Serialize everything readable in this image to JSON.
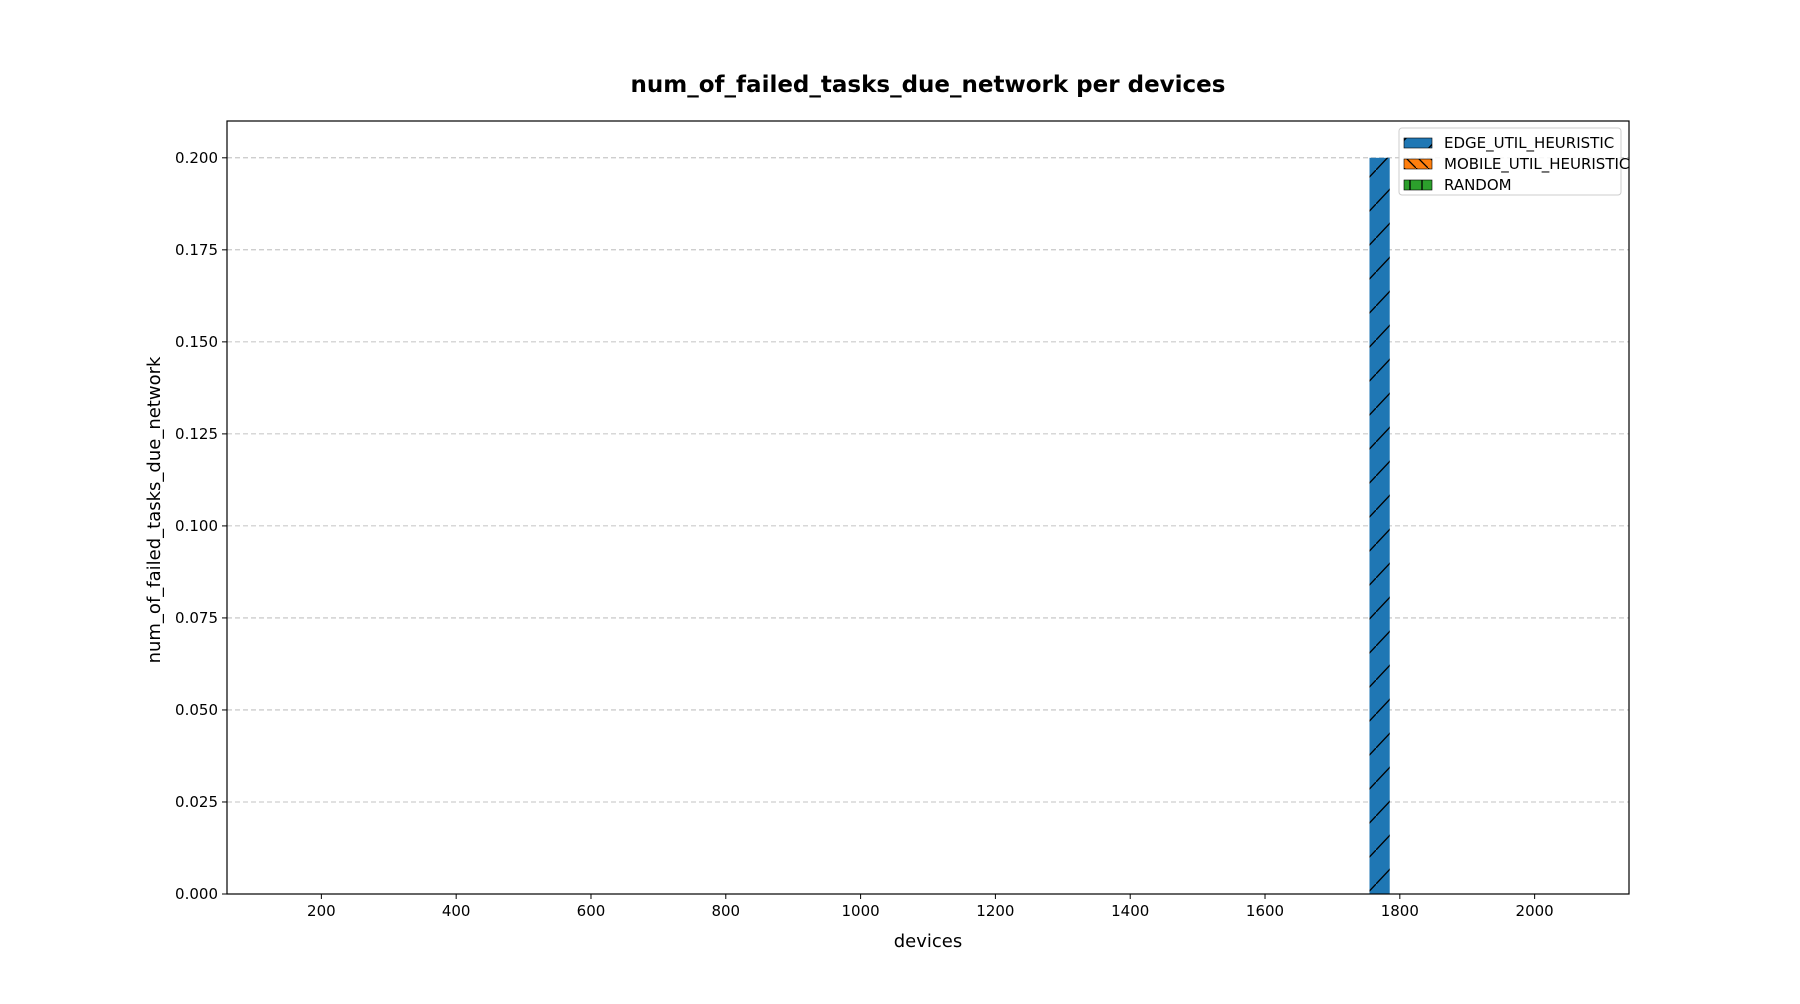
{
  "chart_data": {
    "type": "bar",
    "title": "num_of_failed_tasks_due_network per devices",
    "xlabel": "devices",
    "ylabel": "num_of_failed_tasks_due_network",
    "xlim": [
      60,
      2140
    ],
    "ylim": [
      0,
      0.21
    ],
    "x_ticks": [
      200,
      400,
      600,
      800,
      1000,
      1200,
      1400,
      1600,
      1800,
      2000
    ],
    "x_tick_labels": [
      "200",
      "400",
      "600",
      "800",
      "1000",
      "1200",
      "1400",
      "1600",
      "1800",
      "2000"
    ],
    "y_ticks": [
      0,
      0.025,
      0.05,
      0.075,
      0.1,
      0.125,
      0.15,
      0.175,
      0.2
    ],
    "y_tick_labels": [
      "0.000",
      "0.025",
      "0.050",
      "0.075",
      "0.100",
      "0.125",
      "0.150",
      "0.175",
      "0.200"
    ],
    "grid": "horizontal, dashed",
    "legend_position": "top-right",
    "bar_width": 30,
    "series": [
      {
        "name": "EDGE_UTIL_HEURISTIC",
        "color": "#1f77b4",
        "hatch": "diagonal",
        "x": [
          1770
        ],
        "values": [
          0.2
        ]
      },
      {
        "name": "MOBILE_UTIL_HEURISTIC",
        "color": "#ff7f0e",
        "hatch": "backslash",
        "x": [],
        "values": []
      },
      {
        "name": "RANDOM",
        "color": "#2ca02c",
        "hatch": "vertical",
        "x": [],
        "values": []
      }
    ]
  }
}
